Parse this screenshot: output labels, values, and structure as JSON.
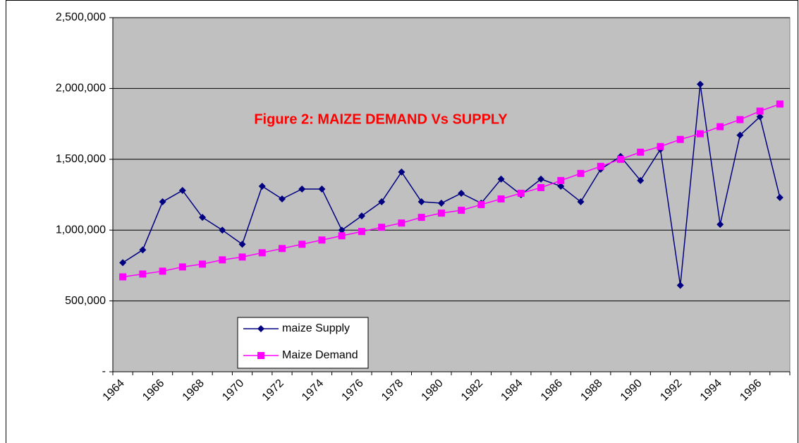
{
  "chart_data": {
    "type": "line",
    "title": "Figure 2: MAIZE DEMAND Vs SUPPLY",
    "categories": [
      "1964",
      null,
      "1966",
      null,
      "1968",
      null,
      "1970",
      null,
      "1972",
      null,
      "1974",
      null,
      "1976",
      null,
      "1978",
      null,
      "1980",
      null,
      "1982",
      null,
      "1984",
      null,
      "1986",
      null,
      "1988",
      null,
      "1990",
      null,
      "1992",
      null,
      "1994",
      null,
      "1996",
      null
    ],
    "series": [
      {
        "name": "maize Supply",
        "color": "#000080",
        "marker": "diamond",
        "values": [
          770000,
          860000,
          1200000,
          1280000,
          1090000,
          1000000,
          900000,
          1310000,
          1220000,
          1290000,
          1290000,
          1000000,
          1100000,
          1200000,
          1410000,
          1200000,
          1190000,
          1260000,
          1190000,
          1360000,
          1250000,
          1360000,
          1310000,
          1200000,
          1430000,
          1520000,
          1350000,
          1570000,
          610000,
          2030000,
          1040000,
          1670000,
          1800000,
          1230000
        ]
      },
      {
        "name": "Maize Demand",
        "color": "#ff00ff",
        "marker": "square",
        "values": [
          670000,
          690000,
          710000,
          740000,
          760000,
          790000,
          810000,
          840000,
          870000,
          900000,
          930000,
          960000,
          990000,
          1020000,
          1050000,
          1090000,
          1120000,
          1140000,
          1180000,
          1220000,
          1260000,
          1300000,
          1350000,
          1400000,
          1450000,
          1500000,
          1550000,
          1590000,
          1640000,
          1680000,
          1730000,
          1780000,
          1840000,
          1890000
        ]
      }
    ],
    "ylim": [
      0,
      2500000
    ],
    "yticks": [
      {
        "value": 0,
        "label": "-"
      },
      {
        "value": 500000,
        "label": "500,000"
      },
      {
        "value": 1000000,
        "label": "1,000,000"
      },
      {
        "value": 1500000,
        "label": "1,500,000"
      },
      {
        "value": 2000000,
        "label": "2,000,000"
      },
      {
        "value": 2500000,
        "label": "2,500,000"
      }
    ],
    "grid": true,
    "legend": "lower left",
    "background": "#c0c0c0"
  }
}
